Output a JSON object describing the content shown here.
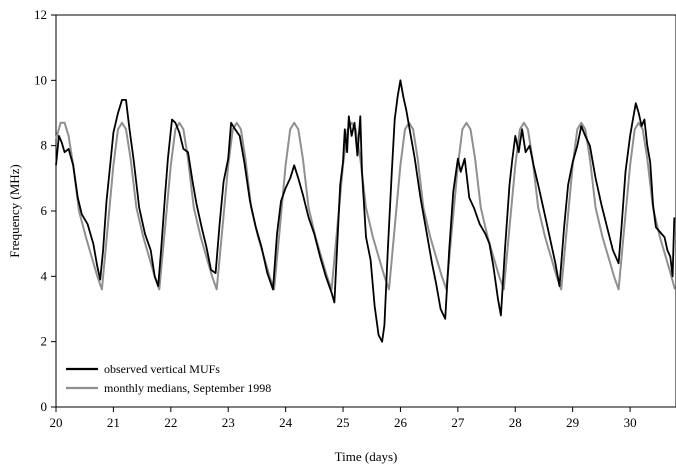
{
  "chart_data": {
    "type": "line",
    "title": "",
    "xlabel": "Time (days)",
    "ylabel": "Frequency (MHz)",
    "xlim": [
      20,
      30.8
    ],
    "ylim": [
      0,
      12
    ],
    "x_ticks": [
      20,
      21,
      22,
      23,
      24,
      25,
      26,
      27,
      28,
      29,
      30
    ],
    "y_ticks": [
      0,
      2,
      4,
      6,
      8,
      10,
      12
    ],
    "grid": false,
    "legend_position": "bottom-left",
    "series": [
      {
        "name": "observed vertical MUFs",
        "color": "#000000",
        "points": [
          [
            20.0,
            7.4
          ],
          [
            20.05,
            8.3
          ],
          [
            20.1,
            8.1
          ],
          [
            20.15,
            7.8
          ],
          [
            20.22,
            7.9
          ],
          [
            20.3,
            7.4
          ],
          [
            20.38,
            6.4
          ],
          [
            20.45,
            5.9
          ],
          [
            20.55,
            5.6
          ],
          [
            20.65,
            5.0
          ],
          [
            20.72,
            4.3
          ],
          [
            20.77,
            3.9
          ],
          [
            20.82,
            4.8
          ],
          [
            20.88,
            6.3
          ],
          [
            20.95,
            7.5
          ],
          [
            21.0,
            8.4
          ],
          [
            21.08,
            9.0
          ],
          [
            21.15,
            9.4
          ],
          [
            21.22,
            9.4
          ],
          [
            21.28,
            8.5
          ],
          [
            21.35,
            7.6
          ],
          [
            21.45,
            6.1
          ],
          [
            21.55,
            5.3
          ],
          [
            21.65,
            4.8
          ],
          [
            21.72,
            4.0
          ],
          [
            21.78,
            3.7
          ],
          [
            21.83,
            4.8
          ],
          [
            21.9,
            6.5
          ],
          [
            21.95,
            7.6
          ],
          [
            22.02,
            8.8
          ],
          [
            22.08,
            8.7
          ],
          [
            22.15,
            8.4
          ],
          [
            22.22,
            7.9
          ],
          [
            22.3,
            7.8
          ],
          [
            22.38,
            6.9
          ],
          [
            22.45,
            6.2
          ],
          [
            22.55,
            5.4
          ],
          [
            22.62,
            4.9
          ],
          [
            22.7,
            4.2
          ],
          [
            22.78,
            4.1
          ],
          [
            22.85,
            5.6
          ],
          [
            22.92,
            6.9
          ],
          [
            23.0,
            7.6
          ],
          [
            23.05,
            8.7
          ],
          [
            23.12,
            8.5
          ],
          [
            23.2,
            8.3
          ],
          [
            23.28,
            7.5
          ],
          [
            23.38,
            6.3
          ],
          [
            23.48,
            5.5
          ],
          [
            23.58,
            4.9
          ],
          [
            23.68,
            4.1
          ],
          [
            23.78,
            3.6
          ],
          [
            23.85,
            5.3
          ],
          [
            23.92,
            6.3
          ],
          [
            24.0,
            6.7
          ],
          [
            24.08,
            7.0
          ],
          [
            24.15,
            7.4
          ],
          [
            24.22,
            7.0
          ],
          [
            24.3,
            6.5
          ],
          [
            24.4,
            5.8
          ],
          [
            24.5,
            5.3
          ],
          [
            24.6,
            4.6
          ],
          [
            24.7,
            4.0
          ],
          [
            24.8,
            3.5
          ],
          [
            24.85,
            3.2
          ],
          [
            24.9,
            5.0
          ],
          [
            24.95,
            6.8
          ],
          [
            25.0,
            7.5
          ],
          [
            25.03,
            8.5
          ],
          [
            25.07,
            7.8
          ],
          [
            25.1,
            8.9
          ],
          [
            25.15,
            8.3
          ],
          [
            25.2,
            8.7
          ],
          [
            25.25,
            7.7
          ],
          [
            25.3,
            8.9
          ],
          [
            25.33,
            7.2
          ],
          [
            25.4,
            5.2
          ],
          [
            25.48,
            4.5
          ],
          [
            25.55,
            3.1
          ],
          [
            25.62,
            2.2
          ],
          [
            25.68,
            2.0
          ],
          [
            25.72,
            2.5
          ],
          [
            25.78,
            4.8
          ],
          [
            25.85,
            7.2
          ],
          [
            25.9,
            8.8
          ],
          [
            25.95,
            9.5
          ],
          [
            26.0,
            10.0
          ],
          [
            26.05,
            9.5
          ],
          [
            26.1,
            9.1
          ],
          [
            26.18,
            8.3
          ],
          [
            26.25,
            7.6
          ],
          [
            26.35,
            6.4
          ],
          [
            26.45,
            5.4
          ],
          [
            26.55,
            4.4
          ],
          [
            26.62,
            3.8
          ],
          [
            26.7,
            3.0
          ],
          [
            26.78,
            2.7
          ],
          [
            26.85,
            4.8
          ],
          [
            26.92,
            6.6
          ],
          [
            27.0,
            7.6
          ],
          [
            27.05,
            7.2
          ],
          [
            27.12,
            7.6
          ],
          [
            27.2,
            6.4
          ],
          [
            27.28,
            6.1
          ],
          [
            27.38,
            5.6
          ],
          [
            27.48,
            5.3
          ],
          [
            27.55,
            5.0
          ],
          [
            27.62,
            4.3
          ],
          [
            27.7,
            3.3
          ],
          [
            27.75,
            2.8
          ],
          [
            27.82,
            4.8
          ],
          [
            27.9,
            6.8
          ],
          [
            27.95,
            7.6
          ],
          [
            28.0,
            8.3
          ],
          [
            28.06,
            7.8
          ],
          [
            28.12,
            8.5
          ],
          [
            28.18,
            7.8
          ],
          [
            28.25,
            8.0
          ],
          [
            28.32,
            7.4
          ],
          [
            28.4,
            6.8
          ],
          [
            28.5,
            6.0
          ],
          [
            28.6,
            5.2
          ],
          [
            28.7,
            4.4
          ],
          [
            28.77,
            3.7
          ],
          [
            28.85,
            5.5
          ],
          [
            28.92,
            6.8
          ],
          [
            29.0,
            7.5
          ],
          [
            29.08,
            8.0
          ],
          [
            29.15,
            8.6
          ],
          [
            29.22,
            8.3
          ],
          [
            29.3,
            8.0
          ],
          [
            29.4,
            7.0
          ],
          [
            29.5,
            6.2
          ],
          [
            29.6,
            5.5
          ],
          [
            29.7,
            4.8
          ],
          [
            29.8,
            4.4
          ],
          [
            29.85,
            5.5
          ],
          [
            29.92,
            7.2
          ],
          [
            30.0,
            8.3
          ],
          [
            30.05,
            8.8
          ],
          [
            30.1,
            9.3
          ],
          [
            30.15,
            9.0
          ],
          [
            30.2,
            8.6
          ],
          [
            30.25,
            8.8
          ],
          [
            30.3,
            8.0
          ],
          [
            30.35,
            7.5
          ],
          [
            30.4,
            6.2
          ],
          [
            30.45,
            5.5
          ],
          [
            30.5,
            5.4
          ],
          [
            30.6,
            5.2
          ],
          [
            30.65,
            4.8
          ],
          [
            30.7,
            4.6
          ],
          [
            30.74,
            4.0
          ],
          [
            30.77,
            5.8
          ]
        ]
      },
      {
        "name": "monthly medians, September 1998",
        "color": "#909090",
        "points": [
          [
            20.0,
            8.2
          ],
          [
            20.08,
            8.7
          ],
          [
            20.15,
            8.7
          ],
          [
            20.22,
            8.3
          ],
          [
            20.3,
            7.4
          ],
          [
            20.4,
            6.0
          ],
          [
            20.52,
            5.2
          ],
          [
            20.62,
            4.6
          ],
          [
            20.72,
            4.0
          ],
          [
            20.8,
            3.6
          ],
          [
            20.9,
            5.5
          ],
          [
            21.0,
            7.4
          ],
          [
            21.08,
            8.5
          ],
          [
            21.15,
            8.7
          ],
          [
            21.22,
            8.5
          ],
          [
            21.3,
            7.6
          ],
          [
            21.4,
            6.1
          ],
          [
            21.52,
            5.2
          ],
          [
            21.62,
            4.6
          ],
          [
            21.72,
            4.0
          ],
          [
            21.8,
            3.6
          ],
          [
            21.9,
            5.5
          ],
          [
            22.0,
            7.4
          ],
          [
            22.08,
            8.5
          ],
          [
            22.15,
            8.7
          ],
          [
            22.22,
            8.5
          ],
          [
            22.3,
            7.6
          ],
          [
            22.4,
            6.1
          ],
          [
            22.52,
            5.2
          ],
          [
            22.62,
            4.6
          ],
          [
            22.72,
            4.0
          ],
          [
            22.8,
            3.6
          ],
          [
            22.9,
            5.5
          ],
          [
            23.0,
            7.4
          ],
          [
            23.08,
            8.5
          ],
          [
            23.15,
            8.7
          ],
          [
            23.22,
            8.5
          ],
          [
            23.3,
            7.6
          ],
          [
            23.4,
            6.1
          ],
          [
            23.52,
            5.2
          ],
          [
            23.62,
            4.6
          ],
          [
            23.72,
            4.0
          ],
          [
            23.8,
            3.6
          ],
          [
            23.9,
            5.5
          ],
          [
            24.0,
            7.4
          ],
          [
            24.08,
            8.5
          ],
          [
            24.15,
            8.7
          ],
          [
            24.22,
            8.5
          ],
          [
            24.3,
            7.6
          ],
          [
            24.4,
            6.1
          ],
          [
            24.52,
            5.2
          ],
          [
            24.62,
            4.6
          ],
          [
            24.72,
            4.0
          ],
          [
            24.8,
            3.6
          ],
          [
            24.9,
            5.5
          ],
          [
            25.0,
            7.4
          ],
          [
            25.08,
            8.5
          ],
          [
            25.15,
            8.7
          ],
          [
            25.22,
            8.5
          ],
          [
            25.3,
            7.6
          ],
          [
            25.4,
            6.1
          ],
          [
            25.52,
            5.2
          ],
          [
            25.62,
            4.6
          ],
          [
            25.72,
            4.0
          ],
          [
            25.8,
            3.6
          ],
          [
            25.9,
            5.5
          ],
          [
            26.0,
            7.4
          ],
          [
            26.08,
            8.5
          ],
          [
            26.15,
            8.7
          ],
          [
            26.22,
            8.5
          ],
          [
            26.3,
            7.6
          ],
          [
            26.4,
            6.1
          ],
          [
            26.52,
            5.2
          ],
          [
            26.62,
            4.6
          ],
          [
            26.72,
            4.0
          ],
          [
            26.8,
            3.6
          ],
          [
            26.9,
            5.5
          ],
          [
            27.0,
            7.4
          ],
          [
            27.08,
            8.5
          ],
          [
            27.15,
            8.7
          ],
          [
            27.22,
            8.5
          ],
          [
            27.3,
            7.6
          ],
          [
            27.4,
            6.1
          ],
          [
            27.52,
            5.2
          ],
          [
            27.62,
            4.6
          ],
          [
            27.72,
            4.0
          ],
          [
            27.8,
            3.6
          ],
          [
            27.9,
            5.5
          ],
          [
            28.0,
            7.4
          ],
          [
            28.08,
            8.5
          ],
          [
            28.15,
            8.7
          ],
          [
            28.22,
            8.5
          ],
          [
            28.3,
            7.6
          ],
          [
            28.4,
            6.1
          ],
          [
            28.52,
            5.2
          ],
          [
            28.62,
            4.6
          ],
          [
            28.72,
            4.0
          ],
          [
            28.8,
            3.6
          ],
          [
            28.9,
            5.5
          ],
          [
            29.0,
            7.4
          ],
          [
            29.08,
            8.5
          ],
          [
            29.15,
            8.7
          ],
          [
            29.22,
            8.5
          ],
          [
            29.3,
            7.6
          ],
          [
            29.4,
            6.1
          ],
          [
            29.52,
            5.2
          ],
          [
            29.62,
            4.6
          ],
          [
            29.72,
            4.0
          ],
          [
            29.8,
            3.6
          ],
          [
            29.9,
            5.5
          ],
          [
            30.0,
            7.4
          ],
          [
            30.08,
            8.5
          ],
          [
            30.15,
            8.7
          ],
          [
            30.22,
            8.5
          ],
          [
            30.3,
            7.6
          ],
          [
            30.4,
            6.1
          ],
          [
            30.52,
            5.2
          ],
          [
            30.62,
            4.6
          ],
          [
            30.72,
            4.0
          ],
          [
            30.78,
            3.6
          ]
        ]
      }
    ]
  }
}
